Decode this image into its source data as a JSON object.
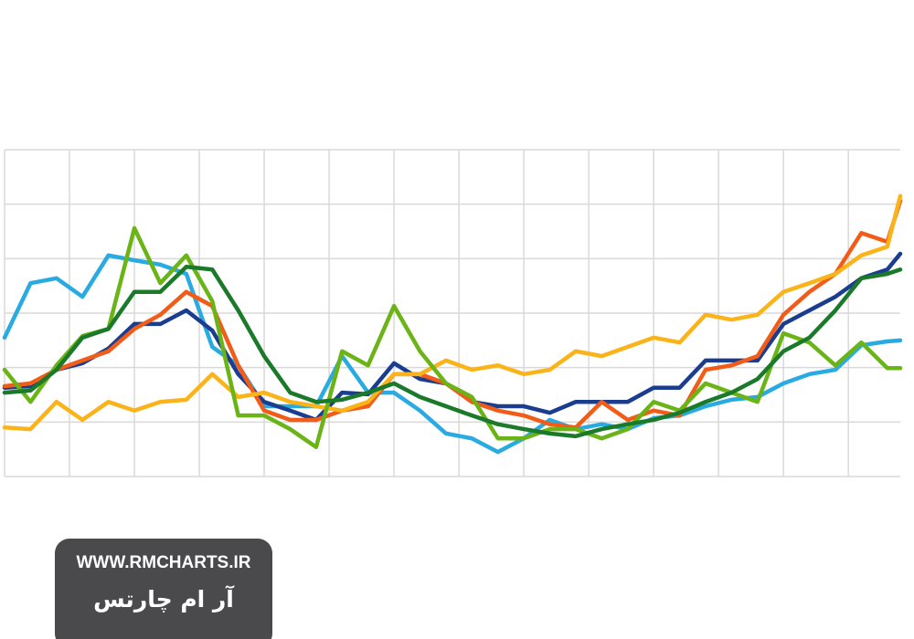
{
  "chart_data": {
    "type": "line",
    "x": [
      0,
      2,
      4,
      6,
      8,
      10,
      12,
      14,
      16,
      18,
      20,
      22,
      24,
      26,
      28,
      30,
      32,
      34,
      36,
      38,
      40,
      42,
      44,
      46,
      48,
      50,
      52,
      54,
      56,
      58,
      60,
      62,
      64,
      66,
      68,
      69
    ],
    "series": [
      {
        "color": "#29abe2",
        "values": [
          2.55,
          3.55,
          3.64,
          3.3,
          4.06,
          3.97,
          3.89,
          3.72,
          2.38,
          2.04,
          1.29,
          1.29,
          1.29,
          2.21,
          1.54,
          1.54,
          1.21,
          0.79,
          0.7,
          0.45,
          0.7,
          1.04,
          0.87,
          0.96,
          0.87,
          1.07,
          1.12,
          1.29,
          1.41,
          1.46,
          1.71,
          1.88,
          1.96,
          2.41,
          2.48,
          2.5
        ]
      },
      {
        "color": "#1a3d8f",
        "values": [
          1.63,
          1.66,
          1.96,
          2.08,
          2.35,
          2.8,
          2.8,
          3.05,
          2.68,
          1.88,
          1.37,
          1.21,
          1.04,
          1.54,
          1.51,
          2.08,
          1.79,
          1.71,
          1.37,
          1.29,
          1.29,
          1.17,
          1.37,
          1.37,
          1.37,
          1.63,
          1.63,
          2.13,
          2.13,
          2.13,
          2.8,
          3.05,
          3.3,
          3.64,
          3.8,
          4.09
        ]
      },
      {
        "color": "#f25c19",
        "values": [
          1.66,
          1.71,
          1.96,
          2.13,
          2.3,
          2.71,
          2.97,
          3.39,
          3.13,
          2.04,
          1.21,
          1.04,
          1.04,
          1.21,
          1.29,
          1.88,
          1.88,
          1.71,
          1.37,
          1.21,
          1.12,
          0.96,
          0.9,
          1.37,
          1.04,
          1.21,
          1.12,
          1.96,
          2.04,
          2.21,
          2.97,
          3.39,
          3.72,
          4.47,
          4.31,
          5.06
        ]
      },
      {
        "color": "#fbb31a",
        "values": [
          0.9,
          0.87,
          1.37,
          1.04,
          1.37,
          1.21,
          1.37,
          1.41,
          1.88,
          1.46,
          1.54,
          1.37,
          1.29,
          1.21,
          1.37,
          1.88,
          1.88,
          2.13,
          1.96,
          2.04,
          1.88,
          1.96,
          2.3,
          2.21,
          2.38,
          2.55,
          2.46,
          2.97,
          2.88,
          2.97,
          3.39,
          3.55,
          3.72,
          4.06,
          4.22,
          5.15
        ]
      },
      {
        "color": "#6ab417",
        "values": [
          1.96,
          1.37,
          2.04,
          2.58,
          2.71,
          4.56,
          3.55,
          4.06,
          3.22,
          1.12,
          1.12,
          0.87,
          0.54,
          2.3,
          2.04,
          3.13,
          2.3,
          1.71,
          1.46,
          0.7,
          0.7,
          0.87,
          0.87,
          0.7,
          0.87,
          1.37,
          1.21,
          1.71,
          1.54,
          1.37,
          2.63,
          2.46,
          2.04,
          2.46,
          1.99,
          1.99
        ]
      },
      {
        "color": "#1a7a2a",
        "values": [
          1.54,
          1.58,
          1.96,
          2.55,
          2.71,
          3.39,
          3.39,
          3.85,
          3.8,
          3.05,
          2.21,
          1.54,
          1.37,
          1.41,
          1.54,
          1.71,
          1.46,
          1.29,
          1.12,
          0.96,
          0.87,
          0.79,
          0.74,
          0.87,
          0.96,
          1.04,
          1.17,
          1.37,
          1.54,
          1.79,
          2.3,
          2.55,
          3.05,
          3.64,
          3.72,
          3.8
        ]
      }
    ],
    "xlim": [
      0,
      69
    ],
    "xticks": [
      0,
      5,
      10,
      15,
      20,
      25,
      30,
      35,
      40,
      45,
      50,
      55,
      60,
      65
    ],
    "ylim": [
      0,
      6
    ],
    "yticks": [
      0,
      1,
      2,
      3,
      4,
      5,
      6
    ],
    "grid": true
  },
  "watermark": {
    "url": "WWW.RMCHARTS.IR",
    "name": "آر ام چارتس"
  }
}
